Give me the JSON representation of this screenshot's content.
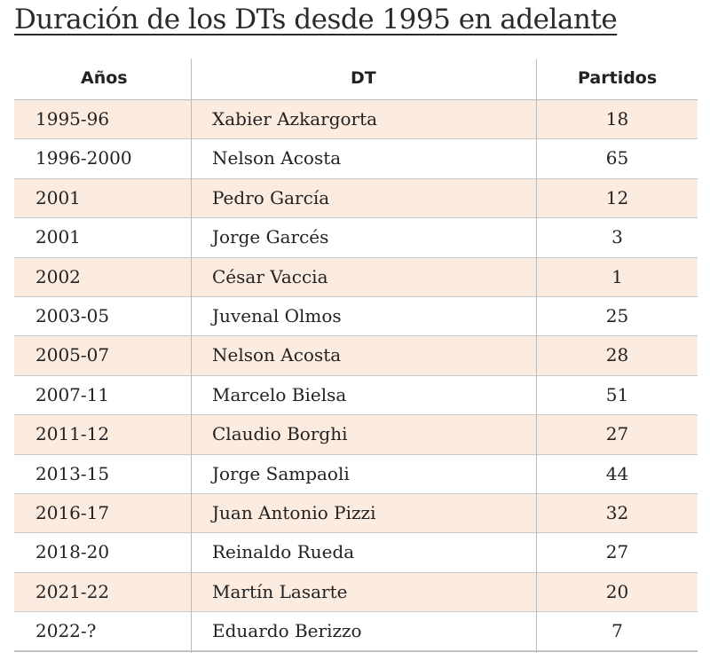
{
  "title": "Duración de los DTs desde 1995 en adelante",
  "colors": {
    "row_highlight": "#fcebdf",
    "text": "#222222",
    "rule": "#b9b9b9"
  },
  "chart_data": {
    "type": "table",
    "columns": [
      "Años",
      "DT",
      "Partidos"
    ],
    "rows": [
      [
        "1995-96",
        "Xabier Azkargorta",
        18
      ],
      [
        "1996-2000",
        "Nelson Acosta",
        65
      ],
      [
        "2001",
        "Pedro García",
        12
      ],
      [
        "2001",
        "Jorge Garcés",
        3
      ],
      [
        "2002",
        "César Vaccia",
        1
      ],
      [
        "2003-05",
        "Juvenal Olmos",
        25
      ],
      [
        "2005-07",
        "Nelson Acosta",
        28
      ],
      [
        "2007-11",
        "Marcelo Bielsa",
        51
      ],
      [
        "2011-12",
        "Claudio Borghi",
        27
      ],
      [
        "2013-15",
        "Jorge Sampaoli",
        44
      ],
      [
        "2016-17",
        "Juan Antonio Pizzi",
        32
      ],
      [
        "2018-20",
        "Reinaldo Rueda",
        27
      ],
      [
        "2021-22",
        "Martín Lasarte",
        20
      ],
      [
        "2022-?",
        "Eduardo Berizzo",
        7
      ]
    ]
  }
}
